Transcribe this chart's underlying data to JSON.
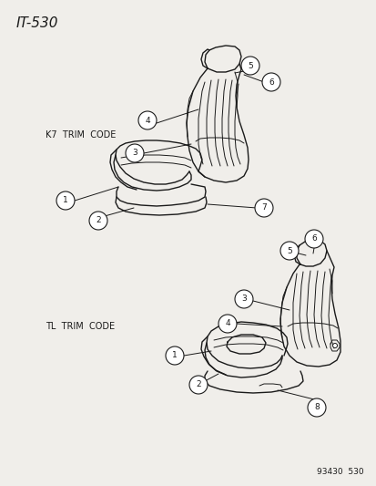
{
  "title": "IT-530",
  "background_color": "#f0eeea",
  "line_color": "#1a1a1a",
  "text_color": "#1a1a1a",
  "figure_width": 4.14,
  "figure_height": 5.33,
  "dpi": 100,
  "label_k7": "K7  TRIM  CODE",
  "label_tl": "TL  TRIM  CODE",
  "footer": "93430  530"
}
